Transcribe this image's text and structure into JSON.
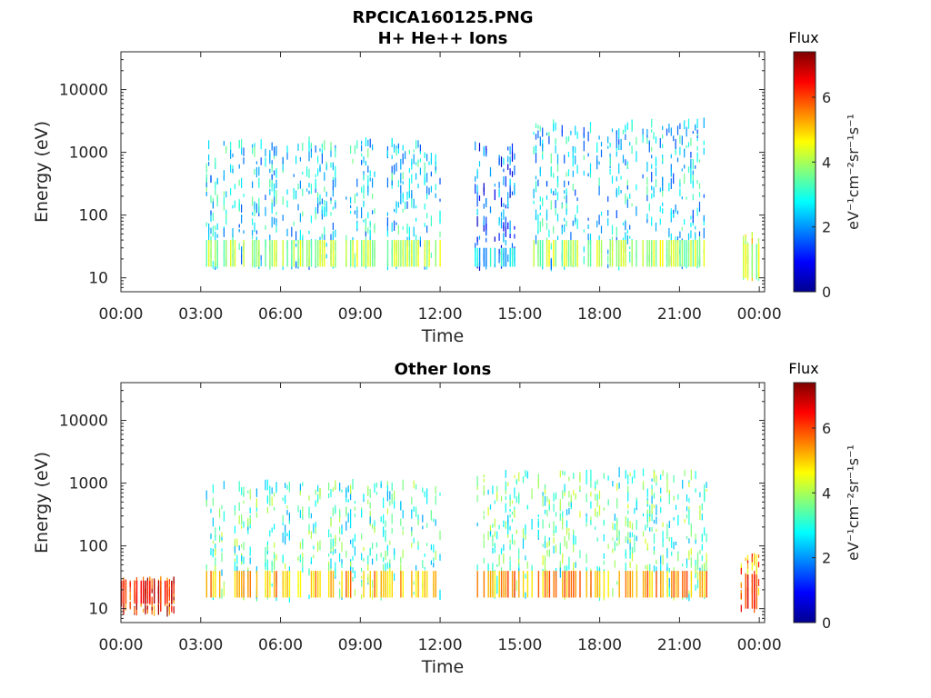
{
  "figure_title": "RPCICA160125.PNG",
  "chart_data": [
    {
      "type": "heatmap",
      "title": "H+ He++ Ions",
      "xlabel": "Time",
      "ylabel": "Energy (eV)",
      "x_tick_labels": [
        "00:00",
        "03:00",
        "06:00",
        "09:00",
        "12:00",
        "15:00",
        "18:00",
        "21:00",
        "00:00"
      ],
      "x_ticks_hours": [
        0,
        3,
        6,
        9,
        12,
        15,
        18,
        21,
        24
      ],
      "xlim_hours": [
        0,
        24.2
      ],
      "y_scale": "log",
      "y_tick_labels": [
        "10",
        "100",
        "1000",
        "10000"
      ],
      "y_tick_values": [
        10,
        100,
        1000,
        10000
      ],
      "ylim": [
        6,
        40000
      ],
      "colorbar": {
        "title": "Flux",
        "label": "eV⁻¹cm⁻²sr⁻¹s⁻¹",
        "tick_labels": [
          "0",
          "2",
          "4",
          "6"
        ],
        "tick_values": [
          0,
          2,
          4,
          6
        ],
        "range": [
          0,
          7.4
        ],
        "colormap": "jet"
      },
      "series": [
        {
          "t_start": 3.2,
          "t_end": 12.0,
          "e_low": 15,
          "e_high": 1500,
          "flux_typical": 2.6,
          "band_low": [
            15,
            40
          ],
          "band_low_flux": 4.0
        },
        {
          "t_start": 13.3,
          "t_end": 14.8,
          "e_low": 15,
          "e_high": 1300,
          "flux_typical": 1.5,
          "band_low": [
            15,
            30
          ],
          "band_low_flux": 2.5
        },
        {
          "t_start": 15.5,
          "t_end": 22.0,
          "e_low": 15,
          "e_high": 3000,
          "flux_typical": 2.5,
          "band_low": [
            15,
            40
          ],
          "band_low_flux": 4.0
        },
        {
          "t_start": 23.3,
          "t_end": 24.0,
          "e_low": 10,
          "e_high": 50,
          "flux_typical": 4.2,
          "band_low": [
            10,
            35
          ],
          "band_low_flux": 4.2
        }
      ]
    },
    {
      "type": "heatmap",
      "title": "Other Ions",
      "xlabel": "Time",
      "ylabel": "Energy (eV)",
      "x_tick_labels": [
        "00:00",
        "03:00",
        "06:00",
        "09:00",
        "12:00",
        "15:00",
        "18:00",
        "21:00",
        "00:00"
      ],
      "x_ticks_hours": [
        0,
        3,
        6,
        9,
        12,
        15,
        18,
        21,
        24
      ],
      "xlim_hours": [
        0,
        24.2
      ],
      "y_scale": "log",
      "y_tick_labels": [
        "10",
        "100",
        "1000",
        "10000"
      ],
      "y_tick_values": [
        10,
        100,
        1000,
        10000
      ],
      "ylim": [
        6,
        40000
      ],
      "colorbar": {
        "title": "Flux",
        "label": "eV⁻¹cm⁻²sr⁻¹s⁻¹",
        "tick_labels": [
          "0",
          "2",
          "4",
          "6"
        ],
        "tick_values": [
          0,
          2,
          4,
          6
        ],
        "range": [
          0,
          7.4
        ],
        "colormap": "jet"
      },
      "series": [
        {
          "t_start": 0.0,
          "t_end": 2.0,
          "e_low": 9,
          "e_high": 30,
          "flux_typical": 6.3,
          "band_low": [
            12,
            28
          ],
          "band_low_flux": 6.6
        },
        {
          "t_start": 3.2,
          "t_end": 12.0,
          "e_low": 15,
          "e_high": 1000,
          "flux_typical": 3.2,
          "band_low": [
            15,
            40
          ],
          "band_low_flux": 5.2
        },
        {
          "t_start": 13.3,
          "t_end": 22.0,
          "e_low": 15,
          "e_high": 1500,
          "flux_typical": 3.3,
          "band_low": [
            15,
            40
          ],
          "band_low_flux": 5.4
        },
        {
          "t_start": 23.3,
          "t_end": 24.0,
          "e_low": 10,
          "e_high": 70,
          "flux_typical": 5.5,
          "band_low": [
            10,
            35
          ],
          "band_low_flux": 6.3
        }
      ]
    }
  ]
}
